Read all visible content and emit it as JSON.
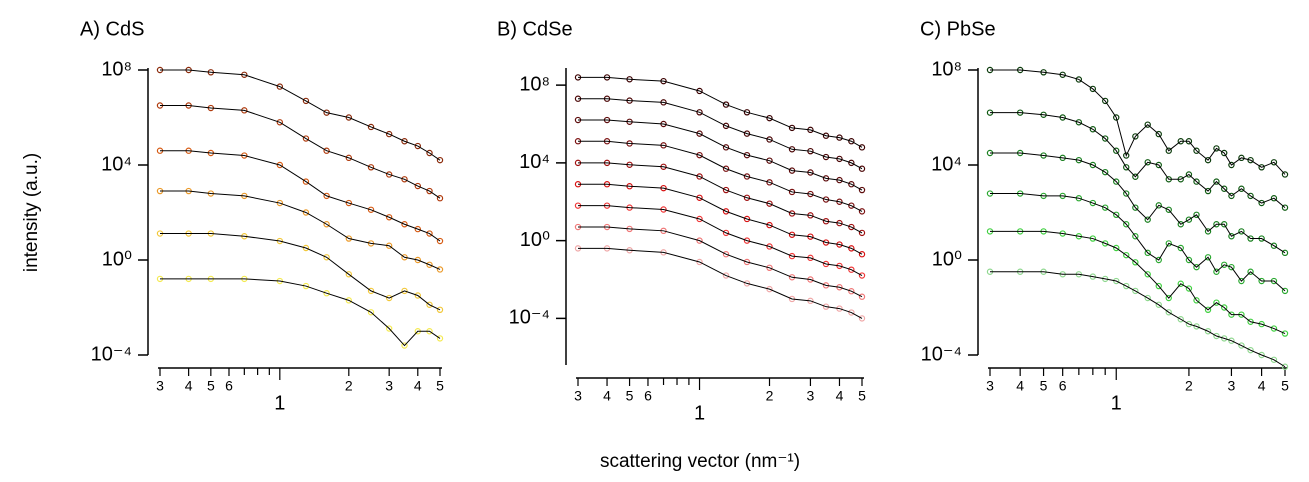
{
  "chart_data": [
    {
      "type": "line",
      "title": "A) CdS",
      "ylabel": "intensity (a.u.)",
      "x": [
        0.3,
        0.4,
        0.5,
        0.7,
        1,
        1.3,
        1.6,
        2,
        2.5,
        3,
        3.5,
        4,
        4.5,
        5
      ],
      "series": [
        {
          "color": "#8b2a0a",
          "values": [
            100000000.0,
            100000000.0,
            80000000.0,
            63000000.0,
            20000000.0,
            5000000.0,
            1600000.0,
            1000000.0,
            400000.0,
            200000.0,
            100000.0,
            63000.0,
            32000.0,
            16000.0
          ]
        },
        {
          "color": "#b03a0c",
          "values": [
            3200000.0,
            3200000.0,
            2500000.0,
            2000000.0,
            630000.0,
            130000.0,
            40000.0,
            20000.0,
            8000.0,
            4000.0,
            2500.0,
            1300.0,
            800,
            400
          ]
        },
        {
          "color": "#d65a12",
          "values": [
            40000.0,
            40000.0,
            32000.0,
            25000.0,
            10000.0,
            2000.0,
            500,
            250,
            130,
            63,
            32,
            20,
            13,
            6.3
          ]
        },
        {
          "color": "#eb9a2a",
          "values": [
            800,
            800,
            630,
            500,
            250,
            100,
            32,
            8,
            5,
            4,
            1.3,
            1,
            0.63,
            0.4
          ]
        },
        {
          "color": "#f2c83a",
          "values": [
            13,
            13,
            13,
            10,
            6.3,
            3.2,
            1.3,
            0.25,
            0.05,
            0.025,
            0.05,
            0.032,
            0.013,
            0.008
          ]
        },
        {
          "color": "#f4ea50",
          "values": [
            0.16,
            0.16,
            0.16,
            0.16,
            0.13,
            0.08,
            0.04,
            0.02,
            0.0063,
            0.0013,
            0.00025,
            0.001,
            0.001,
            0.0005
          ]
        }
      ],
      "fit_color": "#000000",
      "log_x": true,
      "log_y": true,
      "xlim": [
        0.3,
        5
      ],
      "ylim": [
        0.0001,
        100000000
      ],
      "xticks": [
        {
          "value": 0.3,
          "label": "3"
        },
        {
          "value": 0.4,
          "label": "4"
        },
        {
          "value": 0.5,
          "label": "5"
        },
        {
          "value": 0.6,
          "label": "6"
        },
        1,
        2,
        3,
        4,
        5
      ],
      "xminor_ticks": [
        0.7,
        0.8,
        0.9
      ],
      "yticks": [
        {
          "value": 0.0001,
          "label": "10⁻⁴"
        },
        {
          "value": 1,
          "label": "10⁰"
        },
        {
          "value": 10000,
          "label": "10⁴"
        },
        {
          "value": 100000000,
          "label": "10⁸"
        }
      ]
    },
    {
      "type": "line",
      "title": "B) CdSe",
      "xlabel": "scattering vector (nm⁻¹)",
      "x": [
        0.3,
        0.4,
        0.5,
        0.7,
        1,
        1.3,
        1.6,
        2,
        2.5,
        3,
        3.5,
        4,
        4.5,
        5
      ],
      "series": [
        {
          "color": "#3a0000",
          "values": [
            250000000.0,
            250000000.0,
            200000000.0,
            160000000.0,
            50000000.0,
            10000000.0,
            4000000.0,
            2000000.0,
            630000.0,
            500000.0,
            250000.0,
            200000.0,
            130000.0,
            63000.0
          ]
        },
        {
          "color": "#4a0505",
          "values": [
            20000000.0,
            20000000.0,
            16000000.0,
            13000000.0,
            4000000.0,
            800000.0,
            320000.0,
            160000.0,
            50000.0,
            40000.0,
            20000.0,
            16000.0,
            10000.0,
            5000.0
          ]
        },
        {
          "color": "#5c0a0a",
          "values": [
            1600000.0,
            1600000.0,
            1300000.0,
            1000000.0,
            320000.0,
            63000.0,
            25000.0,
            13000.0,
            4000.0,
            3200.0,
            1600.0,
            1300.0,
            800,
            400
          ]
        },
        {
          "color": "#7a1010",
          "values": [
            130000.0,
            130000.0,
            100000.0,
            80000.0,
            25000.0,
            5000.0,
            2000.0,
            1000.0,
            320,
            250,
            130,
            100,
            63,
            32
          ]
        },
        {
          "color": "#a01010",
          "values": [
            10000.0,
            10000.0,
            8000.0,
            6300.0,
            2000.0,
            400,
            160,
            80,
            25,
            20,
            10,
            8,
            5,
            2.5
          ]
        },
        {
          "color": "#d81010",
          "values": [
            800,
            800,
            630,
            500,
            160,
            32,
            13,
            6.3,
            2,
            1.6,
            0.8,
            0.63,
            0.4,
            0.2
          ]
        },
        {
          "color": "#f03838",
          "values": [
            63,
            63,
            50,
            40,
            13,
            2.5,
            1,
            0.5,
            0.16,
            0.13,
            0.063,
            0.05,
            0.032,
            0.016
          ]
        },
        {
          "color": "#f07878",
          "values": [
            5,
            5,
            4,
            3.2,
            1,
            0.2,
            0.08,
            0.04,
            0.013,
            0.01,
            0.005,
            0.004,
            0.0025,
            0.0013
          ]
        },
        {
          "color": "#f0a8a8",
          "values": [
            0.4,
            0.4,
            0.32,
            0.25,
            0.08,
            0.016,
            0.0063,
            0.0032,
            0.001,
            0.0008,
            0.0004,
            0.00032,
            0.0002,
            0.0001
          ]
        }
      ],
      "fit_color": "#000000",
      "log_x": true,
      "log_y": true,
      "xlim": [
        0.3,
        5
      ],
      "ylim": [
        4e-07,
        600000000
      ],
      "xticks": [
        {
          "value": 0.3,
          "label": "3"
        },
        {
          "value": 0.4,
          "label": "4"
        },
        {
          "value": 0.5,
          "label": "5"
        },
        {
          "value": 0.6,
          "label": "6"
        },
        1,
        2,
        3,
        4,
        5
      ],
      "xminor_ticks": [
        0.7,
        0.8,
        0.9
      ],
      "yticks": [
        {
          "value": 0.0001,
          "label": "10⁻⁴"
        },
        {
          "value": 1,
          "label": "10⁰"
        },
        {
          "value": 10000,
          "label": "10⁴"
        },
        {
          "value": 100000000,
          "label": "10⁸"
        }
      ]
    },
    {
      "type": "line",
      "title": "C) PbSe",
      "x": [
        0.3,
        0.4,
        0.5,
        0.6,
        0.7,
        0.8,
        0.9,
        1.0,
        1.1,
        1.2,
        1.35,
        1.5,
        1.65,
        1.85,
        2.0,
        2.15,
        2.4,
        2.6,
        2.8,
        3.0,
        3.3,
        3.6,
        4.0,
        4.5,
        5.0
      ],
      "series": [
        {
          "color": "#0a3a0a",
          "values": [
            100000000.0,
            100000000.0,
            80000000.0,
            63000000.0,
            40000000.0,
            16000000.0,
            5000000.0,
            1000000.0,
            25000.0,
            160000.0,
            500000.0,
            200000.0,
            40000.0,
            100000.0,
            100000.0,
            40000.0,
            16000.0,
            50000.0,
            32000.0,
            10000.0,
            20000.0,
            16000.0,
            8000.0,
            13000.0,
            4000.0
          ]
        },
        {
          "color": "#0f5a12",
          "values": [
            1600000.0,
            1600000.0,
            1300000.0,
            1000000.0,
            630000.0,
            320000.0,
            130000.0,
            40000.0,
            8000.0,
            3200.0,
            13000.0,
            10000.0,
            2500.0,
            2500.0,
            4000.0,
            2000.0,
            800,
            2000.0,
            1000.0,
            500,
            1000.0,
            500,
            250,
            400,
            160
          ]
        },
        {
          "color": "#1a8020",
          "values": [
            32000.0,
            32000.0,
            25000.0,
            20000.0,
            16000.0,
            10000.0,
            5000.0,
            2000.0,
            630,
            160,
            50,
            200,
            130,
            32,
            50,
            80,
            16,
            32,
            32,
            10,
            16,
            8,
            8,
            4,
            2
          ]
        },
        {
          "color": "#2aa830",
          "values": [
            630,
            630,
            500,
            500,
            400,
            250,
            160,
            80,
            32,
            10,
            2,
            1,
            5,
            3.2,
            1,
            0.5,
            1.3,
            0.32,
            0.63,
            0.5,
            0.13,
            0.32,
            0.13,
            0.13,
            0.05
          ]
        },
        {
          "color": "#40d040",
          "values": [
            16,
            16,
            16,
            13,
            10,
            8,
            5,
            3.2,
            1.6,
            0.8,
            0.25,
            0.08,
            0.025,
            0.1,
            0.063,
            0.02,
            0.008,
            0.016,
            0.01,
            0.005,
            0.005,
            0.0025,
            0.002,
            0.0013,
            0.0008
          ]
        },
        {
          "color": "#90d890",
          "values": [
            0.32,
            0.32,
            0.32,
            0.25,
            0.25,
            0.2,
            0.16,
            0.13,
            0.08,
            0.05,
            0.025,
            0.013,
            0.0063,
            0.0032,
            0.002,
            0.0016,
            0.001,
            0.00063,
            0.0005,
            0.0004,
            0.00025,
            0.00016,
            0.0001,
            6.3e-05,
            3.2e-05
          ]
        }
      ],
      "fit_color": "#000000",
      "log_x": true,
      "log_y": true,
      "xlim": [
        0.3,
        5
      ],
      "ylim": [
        0.0001,
        100000000
      ],
      "xticks": [
        {
          "value": 0.3,
          "label": "3"
        },
        {
          "value": 0.4,
          "label": "4"
        },
        {
          "value": 0.5,
          "label": "5"
        },
        {
          "value": 0.6,
          "label": "6"
        },
        1,
        2,
        3,
        4,
        5
      ],
      "xminor_ticks": [
        0.7,
        0.8,
        0.9
      ],
      "yticks": [
        {
          "value": 0.0001,
          "label": "10⁻⁴"
        },
        {
          "value": 1,
          "label": "10⁰"
        },
        {
          "value": 10000,
          "label": "10⁴"
        },
        {
          "value": 100000000,
          "label": "10⁸"
        }
      ]
    }
  ]
}
